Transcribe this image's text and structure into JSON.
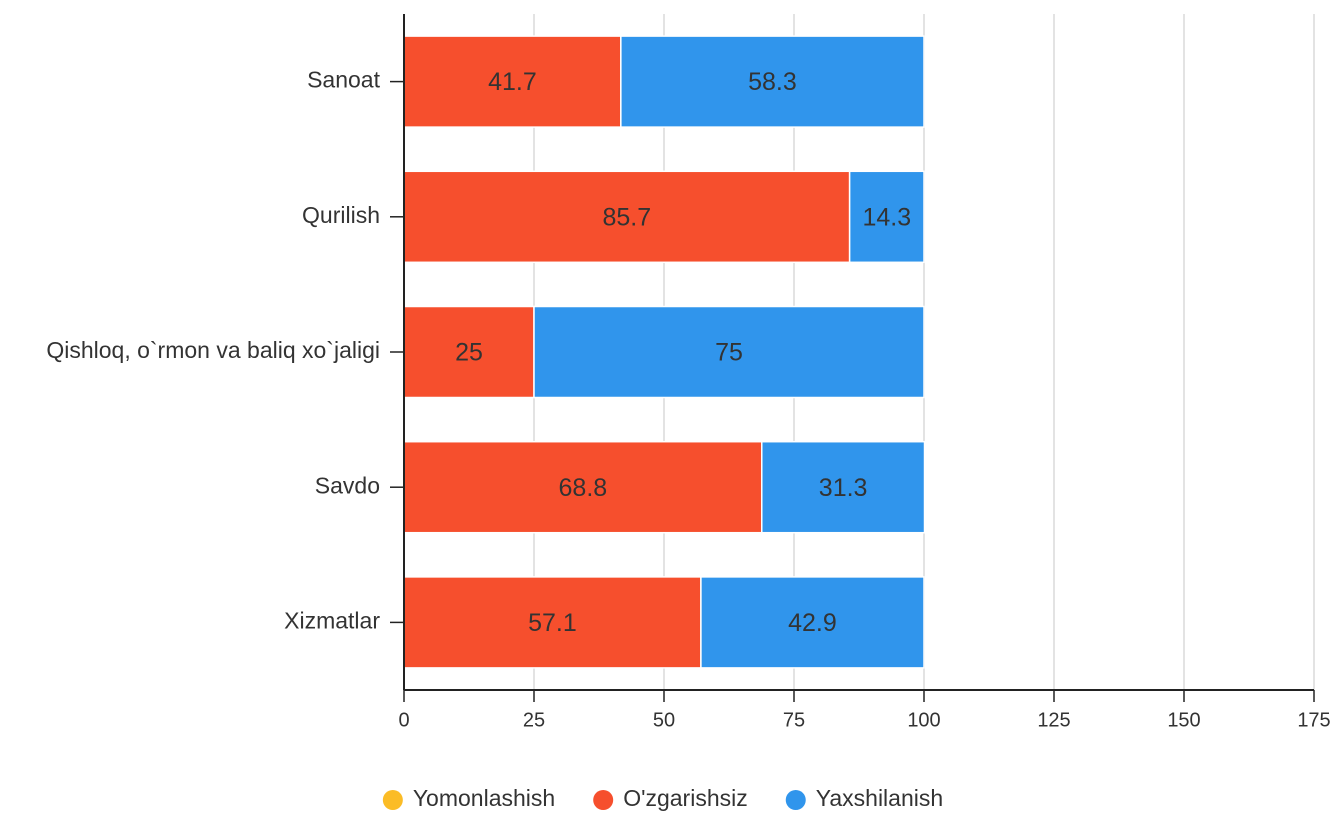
{
  "chart_data": {
    "type": "bar",
    "orientation": "horizontal",
    "stacked": true,
    "categories": [
      "Sanoat",
      "Qurilish",
      "Qishloq, o`rmon va baliq xo`jaligi",
      "Savdo",
      "Xizmatlar"
    ],
    "series": [
      {
        "name": "Yomonlashish",
        "color": "#fbbc26",
        "values": [
          0,
          0,
          0,
          0,
          0
        ]
      },
      {
        "name": "O'zgarishsiz",
        "color": "#f64f2d",
        "values": [
          41.7,
          85.7,
          25,
          68.8,
          57.1
        ]
      },
      {
        "name": "Yaxshilanish",
        "color": "#3095ec",
        "values": [
          58.3,
          14.3,
          75,
          31.3,
          42.9
        ]
      }
    ],
    "xlim": [
      0,
      175
    ],
    "xticks": [
      0,
      25,
      50,
      75,
      100,
      125,
      150,
      175
    ],
    "grid": true,
    "legend": "bottom"
  }
}
